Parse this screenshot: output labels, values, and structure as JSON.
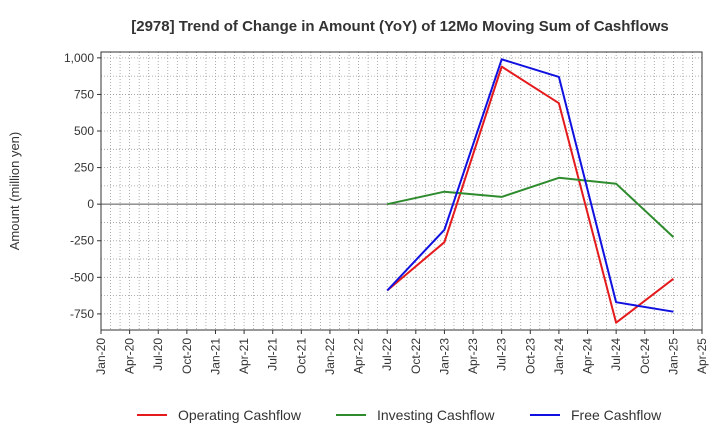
{
  "chart_data": {
    "type": "line",
    "title": "[2978]  Trend of Change in Amount (YoY) of 12Mo Moving Sum of Cashflows",
    "xlabel": "",
    "ylabel": "Amount (million yen)",
    "ylim": [
      -860,
      1040
    ],
    "yticks": [
      -750,
      -500,
      -250,
      0,
      250,
      500,
      750,
      1000
    ],
    "ytick_labels": [
      "-750",
      "-500",
      "-250",
      "0",
      "250",
      "500",
      "750",
      "1,000"
    ],
    "x_ticks": [
      "Jan-20",
      "Apr-20",
      "Jul-20",
      "Oct-20",
      "Jan-21",
      "Apr-21",
      "Jul-21",
      "Oct-21",
      "Jan-22",
      "Apr-22",
      "Jul-22",
      "Oct-22",
      "Jan-23",
      "Apr-23",
      "Jul-23",
      "Oct-23",
      "Jan-24",
      "Apr-24",
      "Jul-24",
      "Oct-24",
      "Jan-25",
      "Apr-25"
    ],
    "grid": true,
    "legend_position": "bottom",
    "series": [
      {
        "name": "Operating Cashflow",
        "color": "#e41a1c",
        "x": [
          "Jul-22",
          "Jan-23",
          "Jul-23",
          "Jan-24",
          "Jul-24",
          "Jan-25"
        ],
        "values": [
          -590,
          -260,
          940,
          690,
          -810,
          -510
        ]
      },
      {
        "name": "Investing Cashflow",
        "color": "#2e8b2e",
        "x": [
          "Jul-22",
          "Jan-23",
          "Jul-23",
          "Jan-24",
          "Jul-24",
          "Jan-25"
        ],
        "values": [
          0,
          85,
          50,
          180,
          140,
          -225
        ]
      },
      {
        "name": "Free Cashflow",
        "color": "#1010e0",
        "x": [
          "Jul-22",
          "Jan-23",
          "Jul-23",
          "Jan-24",
          "Jul-24",
          "Jan-25"
        ],
        "values": [
          -590,
          -175,
          990,
          870,
          -670,
          -735
        ]
      }
    ]
  }
}
